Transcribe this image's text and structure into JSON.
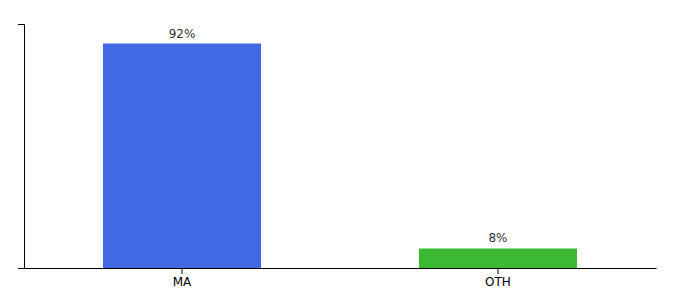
{
  "chart_data": {
    "type": "bar",
    "categories": [
      "MA",
      "OTH"
    ],
    "values": [
      92,
      8
    ],
    "value_labels": [
      "92%",
      "8%"
    ],
    "colors": [
      "#4169e1",
      "#3cb832"
    ],
    "ylim": [
      0,
      100
    ],
    "data_labels": true,
    "tick_labels": "x",
    "grid": false
  }
}
